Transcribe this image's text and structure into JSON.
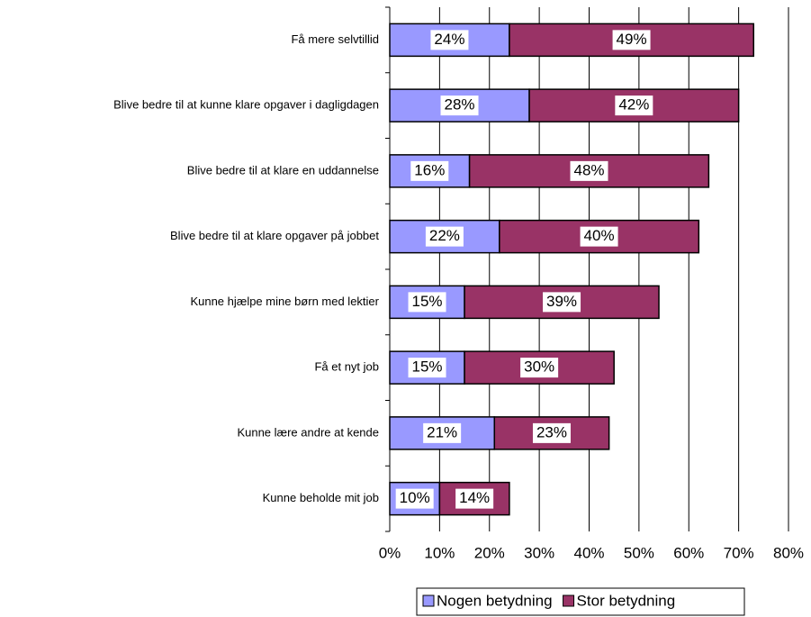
{
  "chart_data": {
    "type": "stacked_bar_horizontal",
    "categories": [
      "Få mere selvtillid",
      "Blive bedre til at kunne klare opgaver i dagligdagen",
      "Blive bedre til at klare en uddannelse",
      "Blive bedre til at klare opgaver på jobbet",
      "Kunne hjælpe mine børn med lektier",
      "Få et nyt job",
      "Kunne lære andre at kende",
      "Kunne beholde mit job"
    ],
    "series": [
      {
        "name": "Nogen betydning",
        "color": "#9999ff",
        "values": [
          24,
          28,
          16,
          22,
          15,
          15,
          21,
          10
        ],
        "value_labels": [
          "24%",
          "28%",
          "16%",
          "22%",
          "15%",
          "15%",
          "21%",
          "10%"
        ]
      },
      {
        "name": "Stor betydning",
        "color": "#993366",
        "values": [
          49,
          42,
          48,
          40,
          39,
          30,
          23,
          14
        ],
        "value_labels": [
          "49%",
          "42%",
          "48%",
          "40%",
          "39%",
          "30%",
          "23%",
          "14%"
        ]
      }
    ],
    "xlim": [
      0,
      80
    ],
    "xticks": [
      {
        "value": 0,
        "label": "0%"
      },
      {
        "value": 10,
        "label": "10%"
      },
      {
        "value": 20,
        "label": "20%"
      },
      {
        "value": 30,
        "label": "30%"
      },
      {
        "value": 40,
        "label": "40%"
      },
      {
        "value": 50,
        "label": "50%"
      },
      {
        "value": 60,
        "label": "60%"
      },
      {
        "value": 70,
        "label": "70%"
      },
      {
        "value": 80,
        "label": "80%"
      }
    ],
    "grid": true,
    "legend": "bottom"
  }
}
